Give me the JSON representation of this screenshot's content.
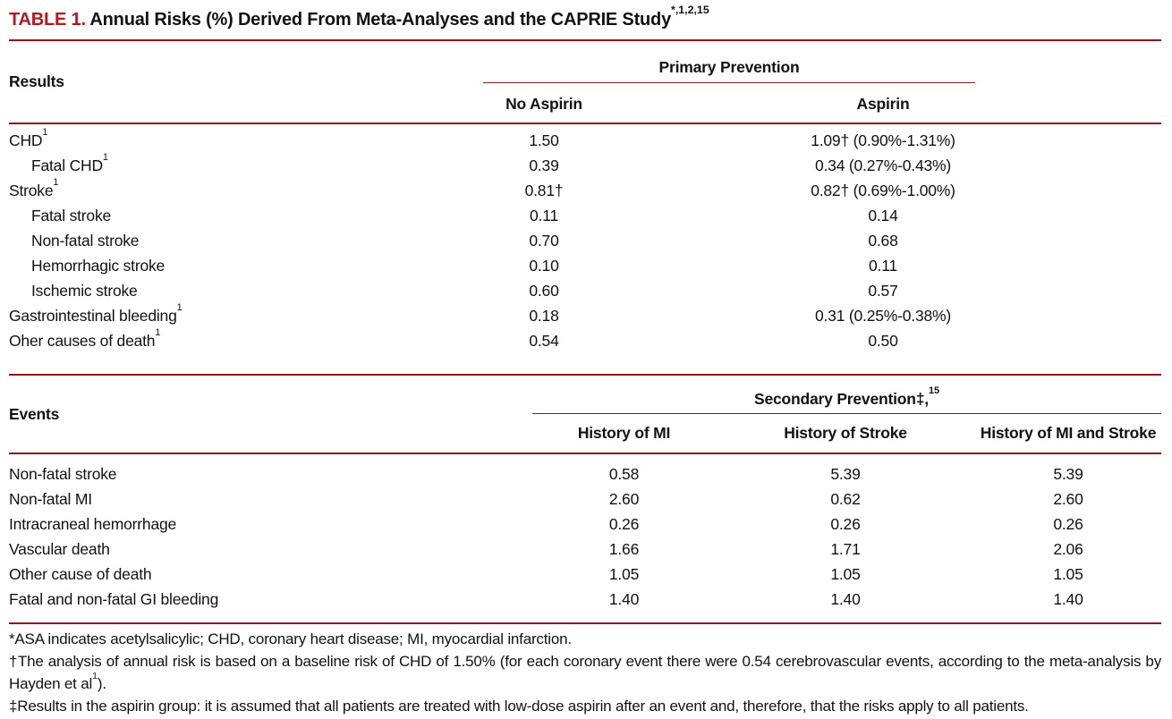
{
  "colors": {
    "accent": "#b5181d",
    "rule": "#8e181c"
  },
  "title": {
    "label": "TABLE 1.",
    "text": " Annual Risks (%) Derived From Meta-Analyses and the CAPRIE Study",
    "superscript": "*,1,2,15"
  },
  "primary_table": {
    "row_header": "Results",
    "group_header": "Primary Prevention",
    "columns": [
      "No Aspirin",
      "Aspirin"
    ],
    "rows": [
      {
        "label": "CHD",
        "sup": "1",
        "indent": false,
        "no_aspirin": "1.50",
        "aspirin": "1.09† (0.90%-1.31%)"
      },
      {
        "label": "Fatal CHD",
        "sup": "1",
        "indent": true,
        "no_aspirin": "0.39",
        "aspirin": "0.34 (0.27%-0.43%)"
      },
      {
        "label": "Stroke",
        "sup": "1",
        "indent": false,
        "no_aspirin": "0.81†",
        "aspirin": "0.82† (0.69%-1.00%)"
      },
      {
        "label": "Fatal stroke",
        "sup": "",
        "indent": true,
        "no_aspirin": "0.11",
        "aspirin": "0.14"
      },
      {
        "label": "Non-fatal stroke",
        "sup": "",
        "indent": true,
        "no_aspirin": "0.70",
        "aspirin": "0.68"
      },
      {
        "label": "Hemorrhagic stroke",
        "sup": "",
        "indent": true,
        "no_aspirin": "0.10",
        "aspirin": "0.11"
      },
      {
        "label": "Ischemic stroke",
        "sup": "",
        "indent": true,
        "no_aspirin": "0.60",
        "aspirin": "0.57"
      },
      {
        "label": "Gastrointestinal bleeding",
        "sup": "1",
        "indent": false,
        "no_aspirin": "0.18",
        "aspirin": "0.31 (0.25%-0.38%)"
      },
      {
        "label": "Oher causes of death",
        "sup": "1",
        "indent": false,
        "no_aspirin": "0.54",
        "aspirin": "0.50"
      }
    ]
  },
  "secondary_table": {
    "row_header": "Events",
    "group_header": "Secondary Prevention‡,",
    "group_header_sup": "15",
    "columns": [
      "History of MI",
      "History of Stroke",
      "History of MI and Stroke"
    ],
    "rows": [
      {
        "label": "Non-fatal stroke",
        "values": [
          "0.58",
          "5.39",
          "5.39"
        ]
      },
      {
        "label": "Non-fatal MI",
        "values": [
          "2.60",
          "0.62",
          "2.60"
        ]
      },
      {
        "label": "Intracraneal hemorrhage",
        "values": [
          "0.26",
          "0.26",
          "0.26"
        ]
      },
      {
        "label": "Vascular death",
        "values": [
          "1.66",
          "1.71",
          "2.06"
        ]
      },
      {
        "label": "Other cause of death",
        "values": [
          "1.05",
          "1.05",
          "1.05"
        ]
      },
      {
        "label": "Fatal and non-fatal GI bleeding",
        "values": [
          "1.40",
          "1.40",
          "1.40"
        ]
      }
    ]
  },
  "footnotes": {
    "f1": "*ASA indicates acetylsalicylic; CHD, coronary heart disease; MI, myocardial infarction.",
    "f2_text": "†The analysis of annual risk is based on a baseline risk of CHD of 1.50% (for each coronary event there were 0.54 cerebrovascular events, according to the meta-analysis by Hayden et al",
    "f2_sup": "1",
    "f2_tail": ").",
    "f3": "‡Results in the aspirin group: it is assumed that all patients are treated with low-dose aspirin after an event and, therefore, that the risks apply to all patients."
  }
}
